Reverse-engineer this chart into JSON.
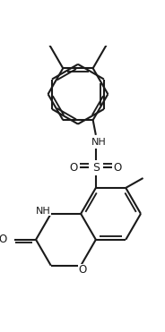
{
  "bg_color": "#ffffff",
  "line_color": "#1a1a1a",
  "line_width": 1.5,
  "dbo": 0.055,
  "figsize": [
    1.84,
    3.71
  ],
  "dpi": 100,
  "xlim": [
    -1.1,
    1.5
  ],
  "ylim": [
    -2.0,
    2.2
  ]
}
